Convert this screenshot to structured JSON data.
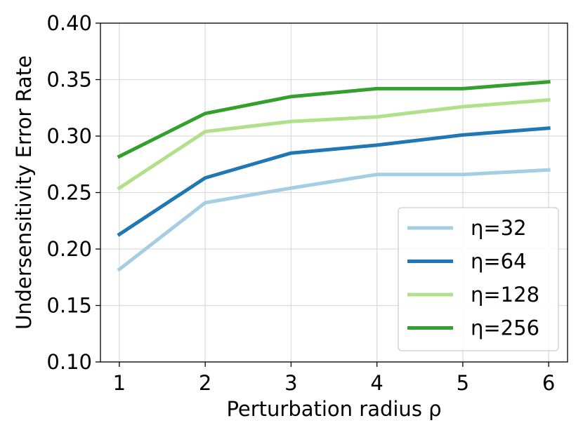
{
  "chart_data": {
    "type": "line",
    "xlabel": "Perturbation radius ρ",
    "ylabel": "Undersensitivity Error Rate",
    "x": [
      1,
      2,
      3,
      4,
      5,
      6
    ],
    "xlim": [
      0.78,
      6.22
    ],
    "ylim": [
      0.1,
      0.4
    ],
    "xticks": [
      "1",
      "2",
      "3",
      "4",
      "5",
      "6"
    ],
    "yticks": [
      "0.10",
      "0.15",
      "0.20",
      "0.25",
      "0.30",
      "0.35",
      "0.40"
    ],
    "grid": true,
    "legend_position": "lower-right",
    "series": [
      {
        "name": "η=32",
        "color": "#a6cee3",
        "values": [
          0.182,
          0.241,
          0.254,
          0.266,
          0.266,
          0.27
        ]
      },
      {
        "name": "η=64",
        "color": "#1f78b4",
        "values": [
          0.213,
          0.263,
          0.285,
          0.292,
          0.301,
          0.307
        ]
      },
      {
        "name": "η=128",
        "color": "#b2df8a",
        "values": [
          0.254,
          0.304,
          0.313,
          0.317,
          0.326,
          0.332
        ]
      },
      {
        "name": "η=256",
        "color": "#33a02c",
        "values": [
          0.282,
          0.32,
          0.335,
          0.342,
          0.342,
          0.348
        ]
      }
    ]
  }
}
